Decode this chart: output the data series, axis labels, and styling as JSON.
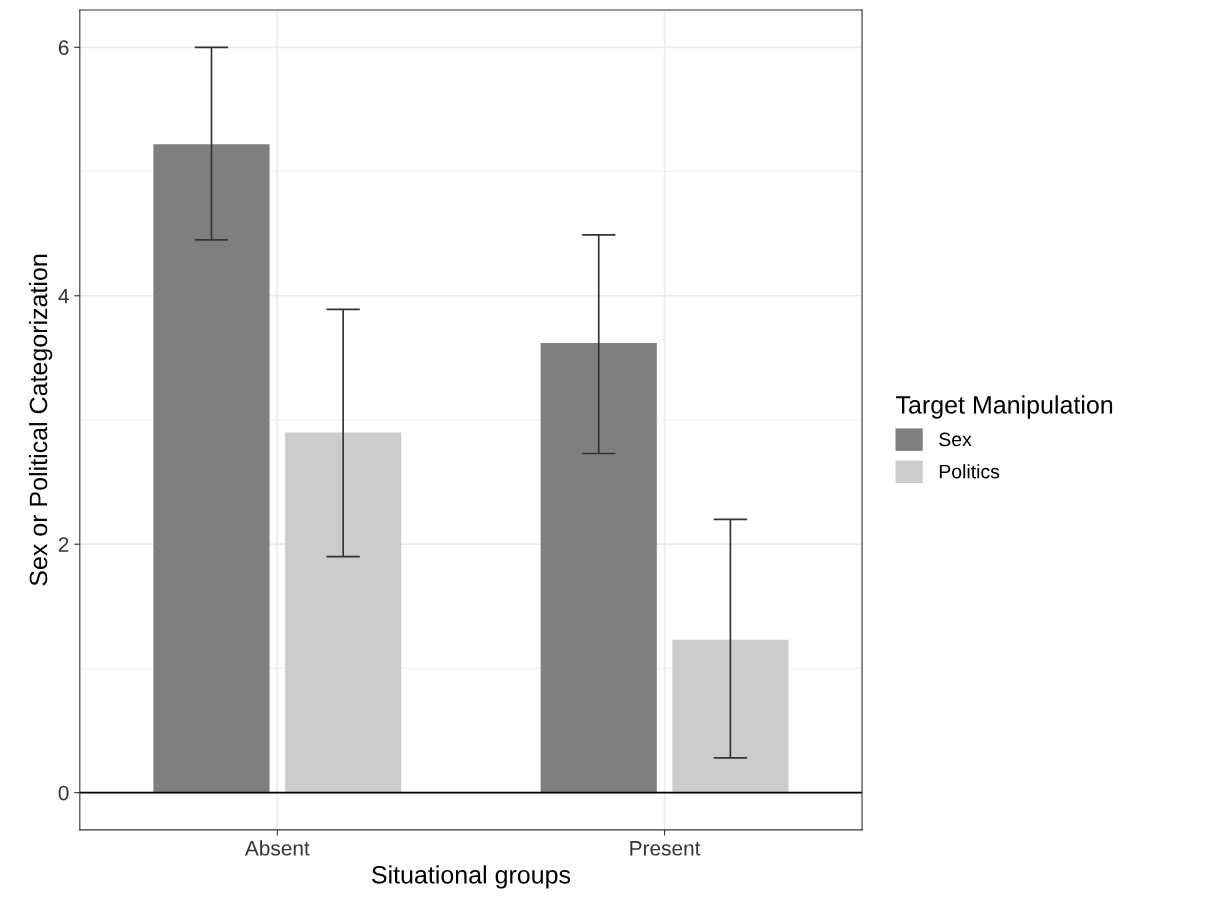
{
  "chart_data": {
    "type": "bar",
    "xlabel": "Situational groups",
    "ylabel": "Sex or Political Categorization",
    "legend_title": "Target Manipulation",
    "categories": [
      "Absent",
      "Present"
    ],
    "series": [
      {
        "name": "Sex",
        "color": "#7f7f7f",
        "values": [
          5.22,
          3.62
        ],
        "errors": [
          [
            4.45,
            6.0
          ],
          [
            2.73,
            4.49
          ]
        ]
      },
      {
        "name": "Politics",
        "color": "#cccccc",
        "values": [
          2.9,
          1.23
        ],
        "errors": [
          [
            1.9,
            3.89
          ],
          [
            0.28,
            2.2
          ]
        ]
      }
    ],
    "ylim": [
      -0.3,
      6.3
    ],
    "yticks": [
      0,
      2,
      4,
      6
    ],
    "grid": true,
    "legend": "right",
    "ref_lines": [
      {
        "axis": "y",
        "value": 0,
        "color": "#000000"
      }
    ]
  }
}
